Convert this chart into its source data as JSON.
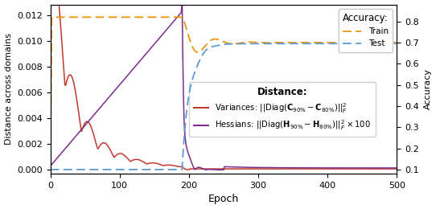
{
  "xlabel": "Epoch",
  "ylabel_left": "Distance across domains",
  "ylabel_right": "Accuracy",
  "xlim": [
    0,
    500
  ],
  "ylim_left": [
    -0.0003,
    0.01285
  ],
  "ylim_right": [
    0.08,
    0.88
  ],
  "yticks_left": [
    0.0,
    0.002,
    0.004,
    0.006,
    0.008,
    0.01,
    0.012
  ],
  "yticks_right": [
    0.1,
    0.2,
    0.3,
    0.4,
    0.5,
    0.6,
    0.7,
    0.8
  ],
  "xticks": [
    0,
    100,
    200,
    300,
    400,
    500
  ],
  "colors": {
    "variances": "#c0392b",
    "hessians": "#7b2d8b",
    "train": "#e8950a",
    "test": "#5b9bd5"
  },
  "legend_accuracy_title": "Accuracy:",
  "legend_distance_title": "Distance:",
  "legend_train": "Train",
  "legend_test": "Test"
}
